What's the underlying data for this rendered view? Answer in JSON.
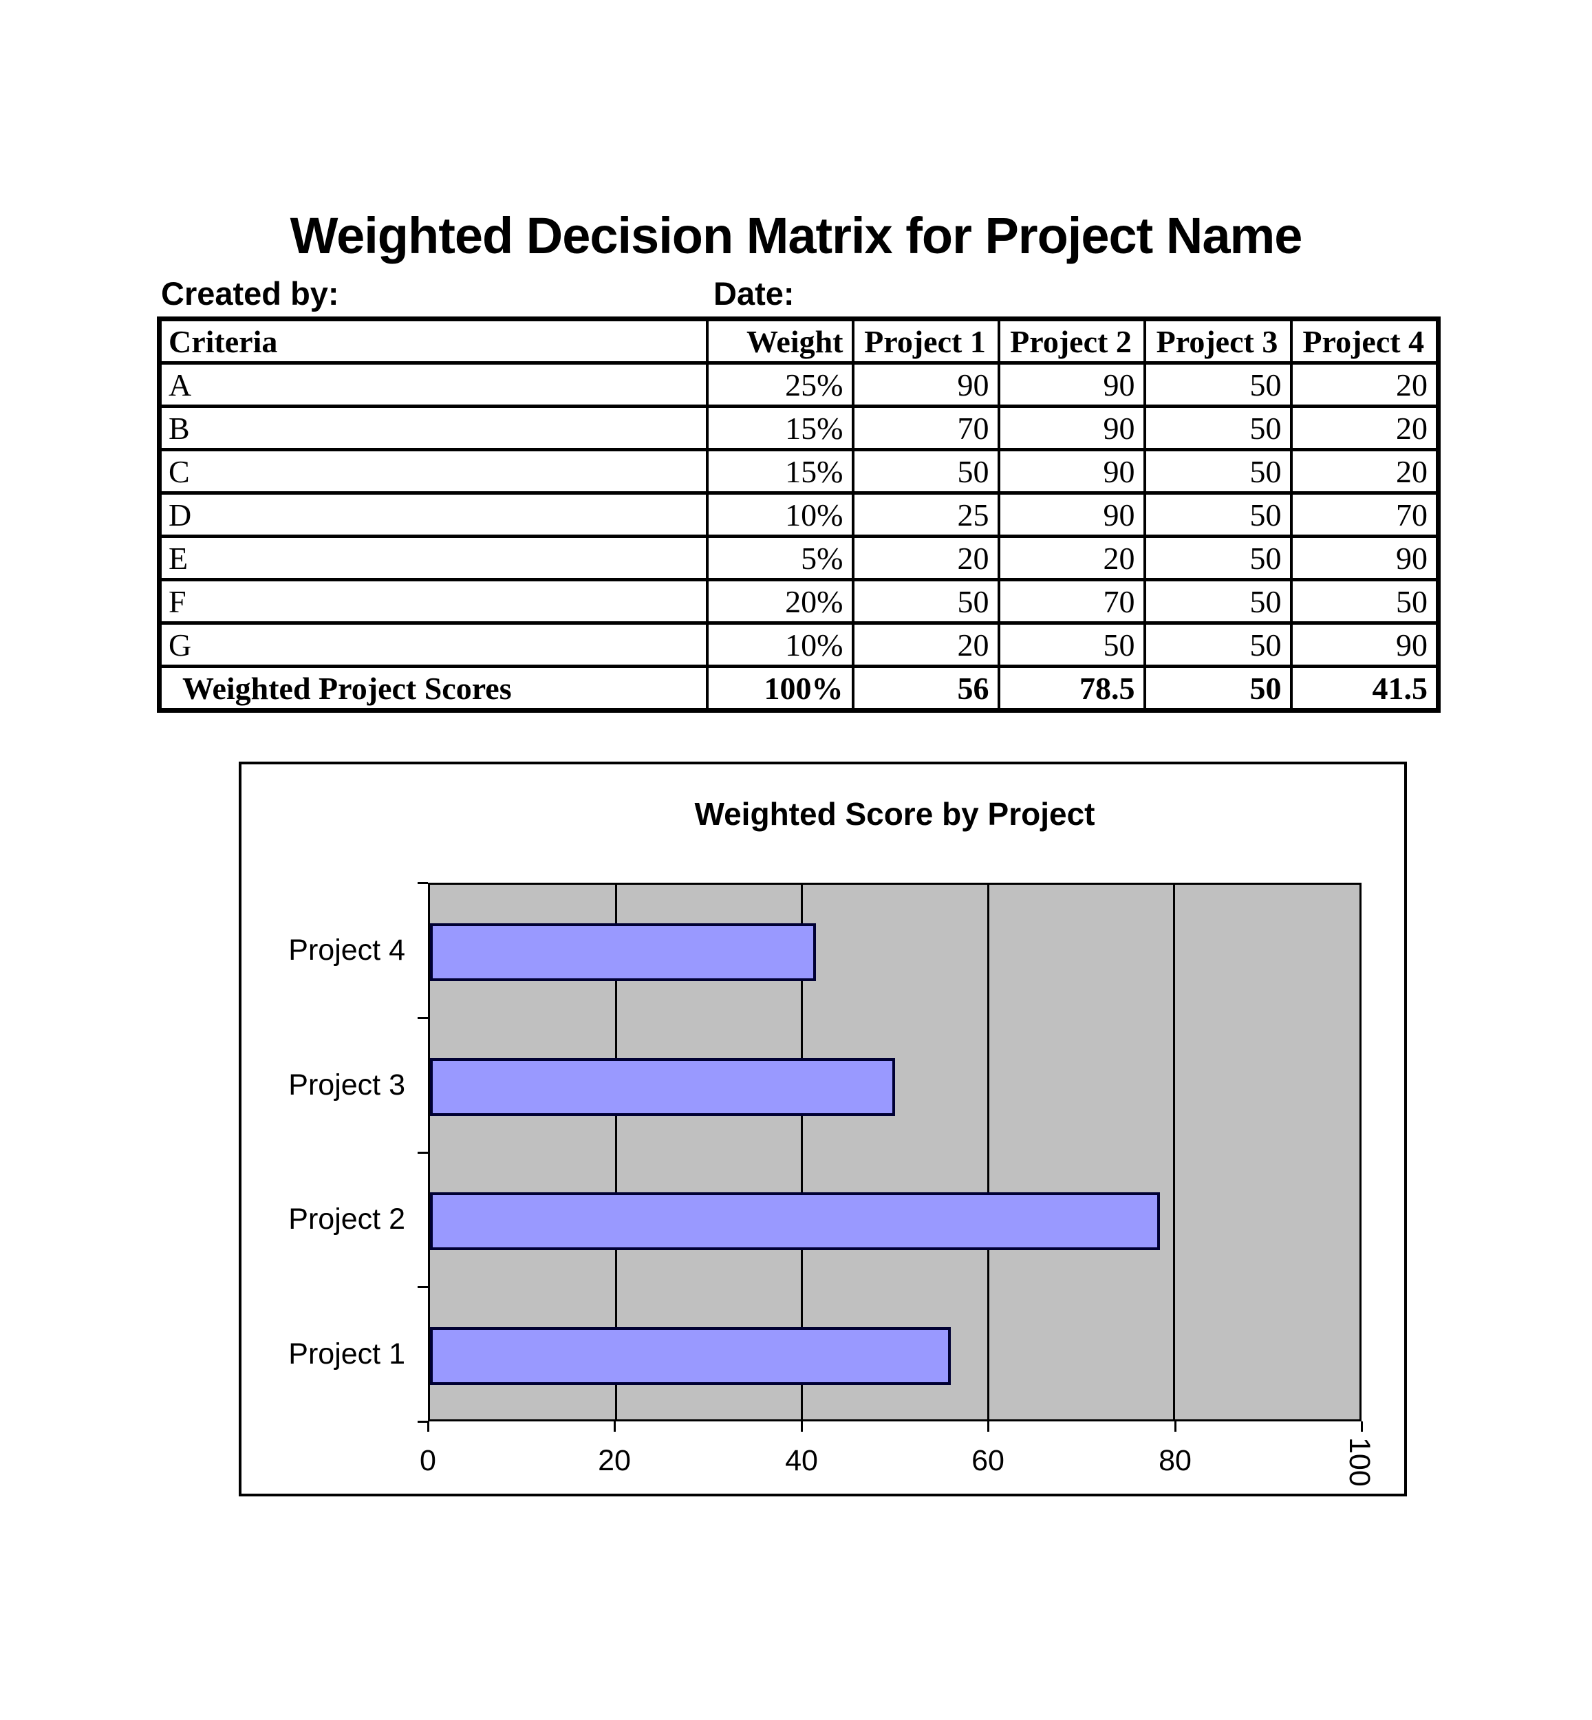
{
  "page": {
    "title": "Weighted Decision Matrix for Project Name",
    "created_by_label": "Created by:",
    "date_label": "Date:"
  },
  "table": {
    "headers": [
      "Criteria",
      "Weight",
      "Project 1",
      "Project 2",
      "Project 3",
      "Project 4"
    ],
    "rows": [
      [
        "A",
        "25%",
        "90",
        "90",
        "50",
        "20"
      ],
      [
        "B",
        "15%",
        "70",
        "90",
        "50",
        "20"
      ],
      [
        "C",
        "15%",
        "50",
        "90",
        "50",
        "20"
      ],
      [
        "D",
        "10%",
        "25",
        "90",
        "50",
        "70"
      ],
      [
        "E",
        "5%",
        "20",
        "20",
        "50",
        "90"
      ],
      [
        "F",
        "20%",
        "50",
        "70",
        "50",
        "50"
      ],
      [
        "G",
        "10%",
        "20",
        "50",
        "50",
        "90"
      ]
    ],
    "total_row": [
      "Weighted Project Scores",
      "100%",
      "56",
      "78.5",
      "50",
      "41.5"
    ]
  },
  "chart_data": {
    "type": "bar",
    "orientation": "horizontal",
    "title": "Weighted Score by Project",
    "categories": [
      "Project 1",
      "Project 2",
      "Project 3",
      "Project 4"
    ],
    "values": [
      56,
      78.5,
      50,
      41.5
    ],
    "display_order_top_to_bottom": [
      "Project 4",
      "Project 3",
      "Project 2",
      "Project 1"
    ],
    "xlim": [
      0,
      100
    ],
    "x_ticks": [
      0,
      20,
      40,
      60,
      80,
      100
    ],
    "last_tick_label_rotated": true,
    "grid": "vertical-on",
    "legend": "none",
    "bar_color": "#9999FF",
    "bar_border_color": "#000033",
    "plot_bg": "#C0C0C0",
    "gridline_color": "#000000"
  }
}
